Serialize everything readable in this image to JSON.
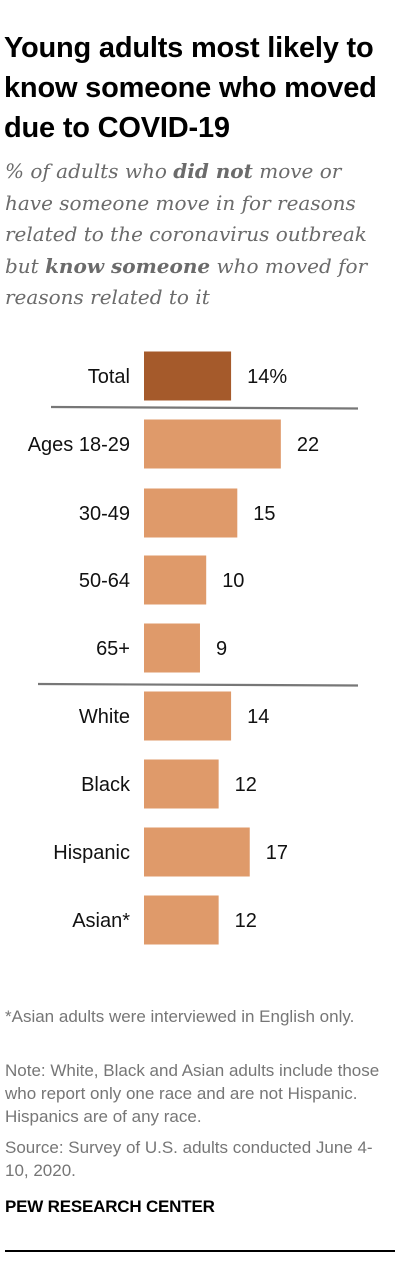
{
  "title": "Young adults most likely to know someone who moved due to COVID-19",
  "subtitle": {
    "part1": "% of adults who ",
    "bold1": "did not",
    "part2": " move or have someone move in for reasons related to the coronavirus outbreak but ",
    "bold2": "know someone",
    "part3": " who moved for reasons related to it"
  },
  "chart_data": {
    "type": "bar",
    "orientation": "horizontal",
    "categories": [
      "Total",
      "Ages 18-29",
      "30-49",
      "50-64",
      "65+",
      "White",
      "Black",
      "Hispanic",
      "Asian*"
    ],
    "values": [
      14,
      22,
      15,
      10,
      9,
      14,
      12,
      17,
      12
    ],
    "value_labels": [
      "14%",
      "22",
      "15",
      "10",
      "9",
      "14",
      "12",
      "17",
      "12"
    ],
    "groups": [
      [
        "Total"
      ],
      [
        "Ages 18-29",
        "30-49",
        "50-64",
        "65+"
      ],
      [
        "White",
        "Black",
        "Hispanic",
        "Asian*"
      ]
    ],
    "colors": {
      "total": "#a55a2b",
      "bars": "#df9a6a",
      "divider": "#777777"
    }
  },
  "footnotes": {
    "asterisk": "*Asian adults were interviewed in English only.",
    "note": "Note: White, Black and Asian adults include those who report only one race and are not Hispanic. Hispanics are of any race.",
    "source": "Source: Survey of U.S. adults conducted June 4-10, 2020."
  },
  "source_title": "PEW RESEARCH CENTER"
}
